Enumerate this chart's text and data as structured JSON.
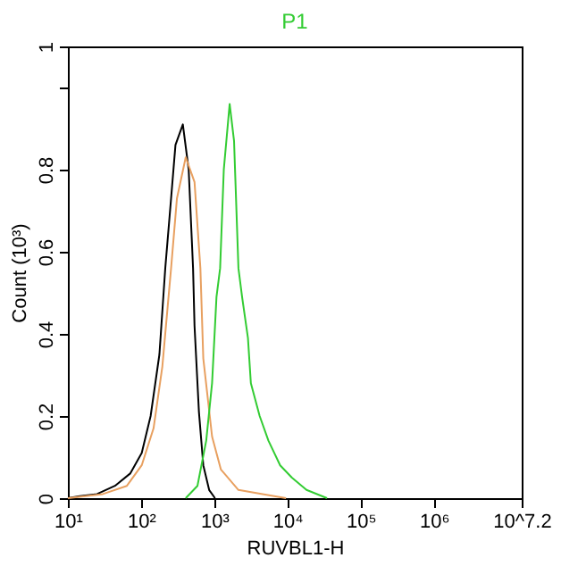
{
  "chart_data": {
    "type": "line",
    "title": "P1",
    "xlabel": "RUVBL1-H",
    "ylabel": "Count (10³)",
    "log": "x",
    "grid": false,
    "legend": false,
    "marker": "none",
    "line_style": "solid",
    "xlim": [
      10,
      15848932
    ],
    "xticks": [
      {
        "value": 10,
        "label": "10¹"
      },
      {
        "value": 100,
        "label": "10²"
      },
      {
        "value": 1000,
        "label": "10³"
      },
      {
        "value": 10000,
        "label": "10⁴"
      },
      {
        "value": 100000,
        "label": "10⁵"
      },
      {
        "value": 1000000,
        "label": "10⁶"
      },
      {
        "value": 15848932,
        "label": "10^7.2"
      }
    ],
    "ylim": [
      0,
      1.1
    ],
    "yticks": [
      0,
      0.2,
      0.4,
      0.6,
      0.8,
      {
        "value": 1,
        "label": null
      },
      {
        "value": 1.1,
        "label": "1"
      }
    ],
    "series": [
      {
        "color": "#000000",
        "x": [
          10,
          14.5,
          25,
          44,
          71,
          102,
          135,
          178,
          214,
          257,
          295,
          372,
          447,
          513,
          537,
          617,
          708,
          851,
          1023
        ],
        "values": [
          0,
          0.005,
          0.01,
          0.03,
          0.06,
          0.11,
          0.2,
          0.35,
          0.56,
          0.73,
          0.86,
          0.91,
          0.8,
          0.56,
          0.42,
          0.21,
          0.08,
          0.02,
          0
        ]
      },
      {
        "color": "#e8a060",
        "x": [
          10,
          30,
          64,
          102,
          148,
          195,
          257,
          309,
          407,
          537,
          646,
          708,
          933,
          1230,
          2138,
          4571,
          9550
        ],
        "values": [
          0,
          0.01,
          0.03,
          0.08,
          0.17,
          0.32,
          0.56,
          0.73,
          0.83,
          0.77,
          0.56,
          0.34,
          0.15,
          0.07,
          0.02,
          0.01,
          0
        ]
      },
      {
        "color": "#33cc33",
        "x": [
          407,
          589,
          776,
          933,
          1072,
          1202,
          1349,
          1622,
          1862,
          2138,
          2399,
          2884,
          3162,
          4169,
          5495,
          7943,
          11482,
          18197,
          34674
        ],
        "values": [
          0,
          0.03,
          0.14,
          0.28,
          0.49,
          0.56,
          0.8,
          0.96,
          0.87,
          0.56,
          0.49,
          0.39,
          0.28,
          0.2,
          0.14,
          0.08,
          0.05,
          0.02,
          0
        ]
      }
    ]
  }
}
